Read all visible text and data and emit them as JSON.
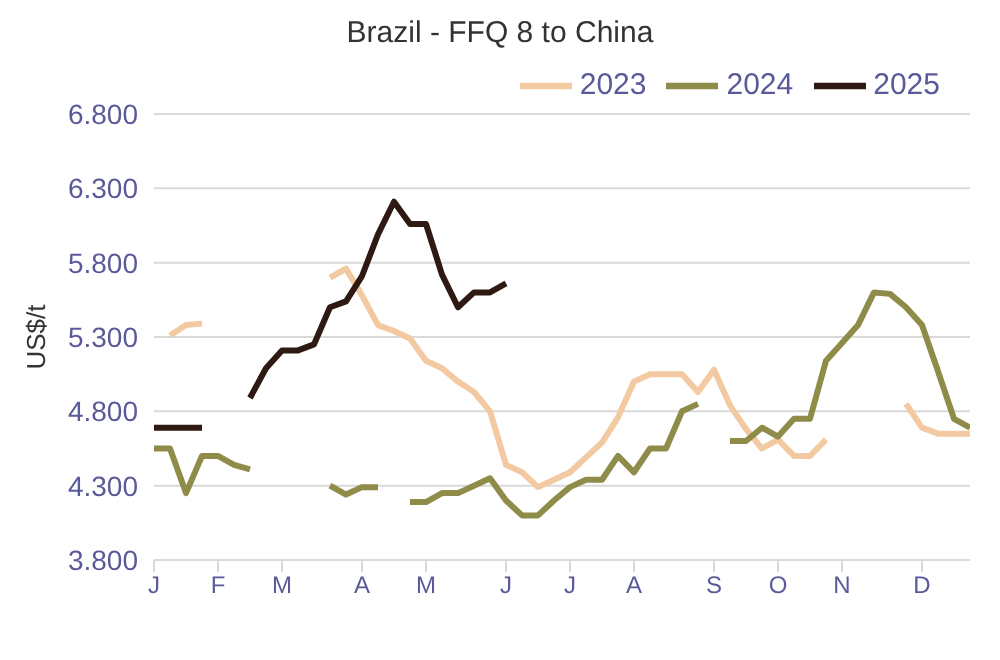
{
  "chart_data": {
    "type": "line",
    "title": "Brazil - FFQ 8  to China",
    "ylabel": "US$/t",
    "categories": [
      "J",
      null,
      null,
      null,
      "F",
      null,
      null,
      null,
      "M",
      null,
      null,
      null,
      null,
      "A",
      null,
      null,
      null,
      "M",
      null,
      null,
      null,
      null,
      "J",
      null,
      null,
      null,
      "J",
      null,
      null,
      null,
      "A",
      null,
      null,
      null,
      null,
      "S",
      null,
      null,
      null,
      "O",
      null,
      null,
      null,
      "N",
      null,
      null,
      null,
      null,
      "D",
      null,
      null,
      null
    ],
    "series": [
      {
        "name": "2023",
        "color": "#f2c9a0",
        "values": [
          null,
          5310,
          5380,
          5390,
          null,
          null,
          null,
          null,
          null,
          null,
          null,
          5700,
          5760,
          5580,
          5380,
          5340,
          5290,
          5140,
          5090,
          5000,
          4930,
          4800,
          4440,
          4390,
          4290,
          4340,
          4390,
          4490,
          4590,
          4760,
          5000,
          5050,
          5050,
          5050,
          4930,
          5080,
          4840,
          4680,
          4550,
          4610,
          4500,
          4500,
          4610,
          null,
          null,
          null,
          null,
          4850,
          4690,
          4650,
          4650,
          4650
        ]
      },
      {
        "name": "2024",
        "color": "#8f8c4a",
        "values": [
          4550,
          4550,
          4250,
          4500,
          4500,
          4440,
          4410,
          null,
          null,
          null,
          null,
          4300,
          4240,
          4290,
          4290,
          null,
          4190,
          4190,
          4250,
          4250,
          4300,
          4350,
          4200,
          4100,
          4100,
          4200,
          4290,
          4340,
          4340,
          4500,
          4390,
          4550,
          4550,
          4800,
          4850,
          null,
          4600,
          4600,
          4690,
          4630,
          4750,
          4750,
          5140,
          5260,
          5380,
          5600,
          5590,
          5500,
          5380,
          5070,
          4750,
          4690
        ]
      },
      {
        "name": "2025",
        "color": "#2e1a12",
        "values": [
          4690,
          4690,
          4690,
          4690,
          null,
          null,
          4890,
          5090,
          5210,
          5210,
          5250,
          5500,
          5540,
          5710,
          5990,
          6210,
          6060,
          6060,
          5720,
          5500,
          5600,
          5600,
          5660,
          null,
          null,
          null,
          null,
          null,
          null,
          null,
          null,
          null,
          null,
          null,
          null,
          null,
          null,
          null,
          null,
          null,
          null,
          null,
          null,
          null,
          null,
          null,
          null,
          null,
          null,
          null,
          null,
          null
        ]
      }
    ],
    "ylim": [
      3800,
      6800
    ],
    "yticks": [
      {
        "value": 3800,
        "label": "3.800"
      },
      {
        "value": 4300,
        "label": "4.300"
      },
      {
        "value": 4800,
        "label": "4.800"
      },
      {
        "value": 5300,
        "label": "5.300"
      },
      {
        "value": 5800,
        "label": "5.800"
      },
      {
        "value": 6300,
        "label": "6.300"
      },
      {
        "value": 6800,
        "label": "6.800"
      }
    ],
    "grid": "y",
    "legend": "top right",
    "marker": "none",
    "line_style": "solid"
  }
}
